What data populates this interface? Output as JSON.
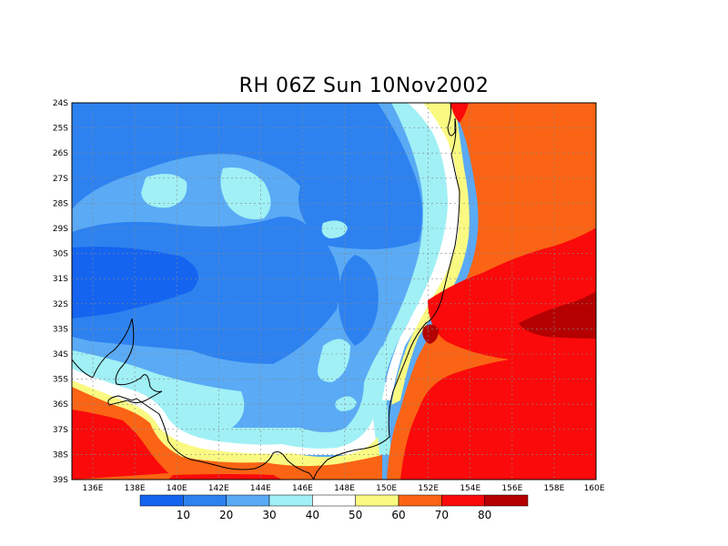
{
  "title": "RH 06Z Sun 10Nov2002",
  "colors": {
    "below10": "#1464f0",
    "10-20": "#2d82f0",
    "20-30": "#5aaaf5",
    "30-40": "#a0f0f5",
    "40-50": "#ffffff",
    "50-60": "#fafa82",
    "60-70": "#fa6414",
    "70-80": "#fa0a0a",
    "80plus": "#b40000",
    "coast": "#000000",
    "grid": "#888888"
  },
  "map": {
    "lon_labels": [
      "136E",
      "138E",
      "140E",
      "142E",
      "144E",
      "146E",
      "148E",
      "150E",
      "152E",
      "154E",
      "156E",
      "158E",
      "160E"
    ],
    "lat_labels": [
      "24S",
      "25S",
      "26S",
      "27S",
      "28S",
      "29S",
      "30S",
      "31S",
      "32S",
      "33S",
      "34S",
      "35S",
      "36S",
      "37S",
      "38S",
      "39S"
    ]
  },
  "colorbar": {
    "labels": [
      "10",
      "20",
      "30",
      "40",
      "50",
      "60",
      "70",
      "80"
    ]
  }
}
